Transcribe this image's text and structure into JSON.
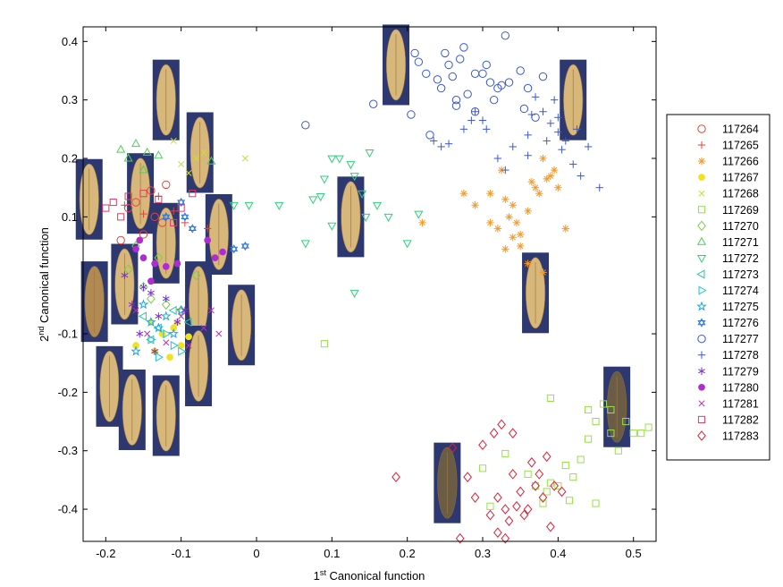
{
  "colors": {
    "grain_bg": "#2d3770",
    "grain_fill_light": "#d8b77a",
    "grain_fill_dark": "#b08a52",
    "grain_fill_dusky": "#6b5d45"
  },
  "chart_data": {
    "type": "scatter",
    "title": "",
    "xlabel": "1st Canonical function",
    "xlabel_main": "1",
    "xlabel_sup": "st",
    "xlabel_rest": " Canonical function",
    "ylabel": "2nd Canonical function",
    "ylabel_main": "2",
    "ylabel_sup": "nd",
    "ylabel_rest": " Canonical function",
    "xlim": [
      -0.23,
      0.53
    ],
    "ylim": [
      -0.455,
      0.425
    ],
    "xticks": [
      -0.2,
      -0.1,
      0,
      0.1,
      0.2,
      0.3,
      0.4,
      0.5
    ],
    "xtick_labels": [
      "-0.2",
      "-0.1",
      "0",
      "0.1",
      "0.2",
      "0.3",
      "0.4",
      "0.5"
    ],
    "yticks": [
      0.4,
      0.3,
      0.2,
      0.1,
      -0.1,
      -0.2,
      -0.3,
      -0.4
    ],
    "ytick_labels": [
      "0.4",
      "0.3",
      "0.2",
      "0.1",
      "-0.1",
      "-0.2",
      "-0.3",
      "-0.4"
    ],
    "legend_position": "outside-right",
    "grain_images": [
      {
        "x": -0.12,
        "y": 0.3,
        "shade": "light"
      },
      {
        "x": -0.075,
        "y": 0.21,
        "shade": "light"
      },
      {
        "x": -0.222,
        "y": 0.13,
        "shade": "light"
      },
      {
        "x": -0.154,
        "y": 0.14,
        "shade": "light"
      },
      {
        "x": -0.05,
        "y": 0.07,
        "shade": "light"
      },
      {
        "x": -0.12,
        "y": 0.055,
        "shade": "light"
      },
      {
        "x": -0.175,
        "y": -0.015,
        "shade": "light"
      },
      {
        "x": -0.215,
        "y": -0.045,
        "shade": "dark"
      },
      {
        "x": -0.077,
        "y": -0.045,
        "shade": "light"
      },
      {
        "x": -0.02,
        "y": -0.085,
        "shade": "light"
      },
      {
        "x": -0.077,
        "y": -0.155,
        "shade": "light"
      },
      {
        "x": -0.195,
        "y": -0.19,
        "shade": "light"
      },
      {
        "x": -0.165,
        "y": -0.23,
        "shade": "light"
      },
      {
        "x": -0.12,
        "y": -0.24,
        "shade": "light"
      },
      {
        "x": 0.185,
        "y": 0.36,
        "shade": "light"
      },
      {
        "x": 0.42,
        "y": 0.3,
        "shade": "light"
      },
      {
        "x": 0.125,
        "y": 0.1,
        "shade": "light"
      },
      {
        "x": 0.37,
        "y": -0.03,
        "shade": "light"
      },
      {
        "x": 0.478,
        "y": -0.225,
        "shade": "dusky"
      },
      {
        "x": 0.253,
        "y": -0.355,
        "shade": "dusky"
      }
    ],
    "series": [
      {
        "name": "117264",
        "color": "#e8423a",
        "marker": "circle",
        "filled": false,
        "x": [
          -0.17,
          -0.16,
          -0.14,
          -0.135,
          -0.125,
          -0.18,
          -0.15,
          -0.12
        ],
        "y": [
          0.115,
          0.125,
          0.145,
          0.1,
          0.09,
          0.06,
          0.07,
          0.155
        ]
      },
      {
        "name": "117265",
        "color": "#e8423a",
        "marker": "plus",
        "filled": false,
        "x": [
          -0.175,
          -0.15,
          -0.13,
          -0.11,
          -0.095,
          -0.065
        ],
        "y": [
          0.12,
          0.105,
          0.135,
          0.11,
          0.09,
          0.08
        ]
      },
      {
        "name": "117266",
        "color": "#f39a2c",
        "marker": "star",
        "filled": false,
        "x": [
          0.275,
          0.29,
          0.31,
          0.325,
          0.33,
          0.335,
          0.34,
          0.345,
          0.35,
          0.36,
          0.365,
          0.37,
          0.375,
          0.38,
          0.39,
          0.395,
          0.4,
          0.33,
          0.34,
          0.35,
          0.32,
          0.31,
          0.36,
          0.41,
          0.38,
          0.22,
          0.385
        ],
        "y": [
          0.14,
          0.12,
          0.14,
          0.18,
          0.13,
          0.1,
          0.12,
          0.09,
          0.07,
          0.11,
          0.16,
          0.15,
          0.14,
          0.2,
          0.17,
          0.18,
          0.15,
          0.045,
          0.065,
          0.05,
          0.08,
          0.09,
          0.02,
          0.08,
          0.005,
          0.09,
          0.165
        ]
      },
      {
        "name": "117267",
        "color": "#f2e21e",
        "marker": "dot",
        "filled": true,
        "x": [
          -0.14,
          -0.125,
          -0.11,
          -0.1,
          -0.09,
          -0.135,
          -0.115,
          -0.105,
          -0.16
        ],
        "y": [
          -0.08,
          -0.1,
          -0.09,
          -0.12,
          -0.105,
          -0.13,
          -0.14,
          -0.08,
          -0.12
        ]
      },
      {
        "name": "117268",
        "color": "#c8e02a",
        "marker": "x",
        "filled": false,
        "x": [
          -0.1,
          -0.09,
          -0.08,
          -0.07,
          -0.015,
          -0.11
        ],
        "y": [
          0.19,
          0.175,
          0.2,
          0.21,
          0.2,
          0.23
        ]
      },
      {
        "name": "117269",
        "color": "#99e04a",
        "marker": "square",
        "filled": false,
        "x": [
          0.09,
          0.3,
          0.31,
          0.33,
          0.36,
          0.37,
          0.38,
          0.385,
          0.39,
          0.4,
          0.41,
          0.415,
          0.42,
          0.43,
          0.44,
          0.45,
          0.46,
          0.47,
          0.47,
          0.48,
          0.49,
          0.5,
          0.51,
          0.52,
          0.44,
          0.45,
          0.39
        ],
        "y": [
          -0.117,
          -0.33,
          -0.395,
          -0.305,
          -0.34,
          -0.36,
          -0.39,
          -0.37,
          -0.355,
          -0.36,
          -0.325,
          -0.385,
          -0.345,
          -0.315,
          -0.28,
          -0.25,
          -0.22,
          -0.23,
          -0.27,
          -0.3,
          -0.25,
          -0.27,
          -0.27,
          -0.26,
          -0.23,
          -0.39,
          -0.21
        ]
      },
      {
        "name": "117270",
        "color": "#7ccf4b",
        "marker": "diamond",
        "filled": false,
        "x": [
          -0.17,
          -0.15,
          -0.14,
          -0.12,
          -0.1,
          -0.08,
          -0.16,
          -0.13
        ],
        "y": [
          0.01,
          -0.02,
          -0.04,
          -0.05,
          -0.06,
          0.0,
          0.05,
          0.03
        ]
      },
      {
        "name": "117271",
        "color": "#4fcf5a",
        "marker": "tri-up",
        "filled": false,
        "x": [
          -0.18,
          -0.17,
          -0.15,
          -0.145,
          -0.13,
          -0.06,
          -0.16
        ],
        "y": [
          0.215,
          0.2,
          0.18,
          0.21,
          0.205,
          0.195,
          0.225
        ]
      },
      {
        "name": "117272",
        "color": "#2fd07a",
        "marker": "tri-down",
        "filled": false,
        "x": [
          -0.03,
          -0.01,
          0.03,
          0.065,
          0.075,
          0.085,
          0.09,
          0.1,
          0.11,
          0.125,
          0.13,
          0.14,
          0.145,
          0.15,
          0.16,
          0.175,
          0.2,
          0.215,
          0.13,
          0.1
        ],
        "y": [
          0.12,
          0.12,
          0.12,
          0.055,
          0.13,
          0.135,
          0.165,
          0.2,
          0.2,
          0.19,
          0.17,
          0.14,
          0.1,
          0.21,
          0.12,
          0.1,
          0.055,
          0.105,
          -0.03,
          0.085
        ]
      },
      {
        "name": "117273",
        "color": "#25c7a3",
        "marker": "tri-left",
        "filled": false,
        "x": [
          -0.15,
          -0.13,
          -0.11,
          -0.09,
          -0.14
        ],
        "y": [
          -0.07,
          -0.09,
          -0.06,
          -0.08,
          -0.11
        ]
      },
      {
        "name": "117274",
        "color": "#1ec3d9",
        "marker": "tri-right",
        "filled": false,
        "x": [
          -0.14,
          -0.12,
          -0.1,
          -0.13,
          -0.11
        ],
        "y": [
          -0.11,
          -0.1,
          -0.13,
          -0.14,
          -0.12
        ]
      },
      {
        "name": "117275",
        "color": "#1aa7e0",
        "marker": "pentagram",
        "filled": false,
        "x": [
          -0.15,
          -0.14,
          -0.12,
          -0.11,
          -0.1,
          -0.13,
          -0.16
        ],
        "y": [
          -0.05,
          -0.08,
          -0.07,
          -0.1,
          -0.06,
          -0.09,
          -0.13
        ]
      },
      {
        "name": "117276",
        "color": "#2f78e0",
        "marker": "hexagram",
        "filled": false,
        "x": [
          -0.1,
          -0.095,
          -0.085,
          -0.03,
          -0.015,
          -0.12
        ],
        "y": [
          0.125,
          0.1,
          0.08,
          0.045,
          0.05,
          0.1
        ]
      },
      {
        "name": "117277",
        "color": "#3b57d8",
        "marker": "circle",
        "filled": false,
        "x": [
          0.065,
          0.155,
          0.205,
          0.21,
          0.215,
          0.225,
          0.23,
          0.24,
          0.245,
          0.25,
          0.255,
          0.26,
          0.265,
          0.27,
          0.275,
          0.28,
          0.29,
          0.3,
          0.305,
          0.31,
          0.315,
          0.32,
          0.325,
          0.33,
          0.335,
          0.35,
          0.355,
          0.36,
          0.37,
          0.38,
          0.29,
          0.265
        ],
        "y": [
          0.257,
          0.293,
          0.275,
          0.38,
          0.365,
          0.345,
          0.24,
          0.335,
          0.32,
          0.38,
          0.36,
          0.34,
          0.3,
          0.37,
          0.39,
          0.31,
          0.28,
          0.345,
          0.36,
          0.33,
          0.3,
          0.32,
          0.325,
          0.41,
          0.33,
          0.35,
          0.285,
          0.32,
          0.27,
          0.34,
          0.345,
          0.29
        ]
      },
      {
        "name": "117278",
        "color": "#3b57d8",
        "marker": "plus",
        "filled": false,
        "x": [
          0.235,
          0.245,
          0.255,
          0.275,
          0.285,
          0.29,
          0.3,
          0.305,
          0.32,
          0.33,
          0.34,
          0.36,
          0.365,
          0.37,
          0.38,
          0.385,
          0.39,
          0.395,
          0.4,
          0.405,
          0.41,
          0.42,
          0.425,
          0.43,
          0.44,
          0.455,
          0.36,
          0.4
        ],
        "y": [
          0.23,
          0.22,
          0.225,
          0.25,
          0.265,
          0.28,
          0.265,
          0.25,
          0.2,
          0.18,
          0.22,
          0.24,
          0.275,
          0.305,
          0.28,
          0.23,
          0.26,
          0.3,
          0.27,
          0.215,
          0.23,
          0.19,
          0.25,
          0.17,
          0.22,
          0.15,
          0.205,
          0.245
        ]
      },
      {
        "name": "117279",
        "color": "#7a2bd6",
        "marker": "asterisk",
        "filled": false,
        "x": [
          -0.175,
          -0.165,
          -0.155,
          -0.14,
          -0.13,
          -0.12,
          -0.105,
          -0.095,
          -0.15,
          -0.135
        ],
        "y": [
          0.0,
          -0.05,
          -0.1,
          -0.03,
          -0.07,
          -0.04,
          -0.08,
          -0.06,
          -0.02,
          -0.13
        ]
      },
      {
        "name": "117280",
        "color": "#b12ad6",
        "marker": "dot",
        "filled": true,
        "x": [
          -0.16,
          -0.15,
          -0.135,
          -0.12,
          -0.105,
          -0.065,
          -0.055,
          -0.045,
          -0.155,
          -0.14
        ],
        "y": [
          0.045,
          0.03,
          0.02,
          0.015,
          0.02,
          0.06,
          0.03,
          0.04,
          0.06,
          -0.01
        ]
      },
      {
        "name": "117281",
        "color": "#c42bb4",
        "marker": "x",
        "filled": false,
        "x": [
          -0.16,
          -0.145,
          -0.12,
          -0.1,
          -0.09,
          -0.07,
          -0.06,
          -0.05
        ],
        "y": [
          -0.06,
          -0.1,
          -0.115,
          -0.07,
          -0.12,
          -0.09,
          -0.06,
          -0.1
        ]
      },
      {
        "name": "117282",
        "color": "#e03a66",
        "marker": "square",
        "filled": false,
        "x": [
          -0.2,
          -0.18,
          -0.17,
          -0.15,
          -0.13,
          -0.11,
          -0.1,
          -0.085,
          -0.19
        ],
        "y": [
          0.115,
          0.1,
          0.135,
          0.14,
          0.13,
          0.09,
          0.115,
          0.14,
          0.125
        ]
      },
      {
        "name": "117283",
        "color": "#e0203a",
        "marker": "diamond",
        "filled": false,
        "x": [
          0.185,
          0.26,
          0.27,
          0.28,
          0.3,
          0.31,
          0.315,
          0.32,
          0.325,
          0.33,
          0.335,
          0.34,
          0.345,
          0.35,
          0.355,
          0.36,
          0.365,
          0.37,
          0.375,
          0.38,
          0.385,
          0.39,
          0.395,
          0.405,
          0.32,
          0.33,
          0.34,
          0.29
        ],
        "y": [
          -0.345,
          -0.295,
          -0.45,
          -0.345,
          -0.29,
          -0.41,
          -0.27,
          -0.38,
          -0.255,
          -0.4,
          -0.42,
          -0.34,
          -0.395,
          -0.37,
          -0.41,
          -0.4,
          -0.32,
          -0.36,
          -0.34,
          -0.38,
          -0.31,
          -0.43,
          -0.36,
          -0.37,
          -0.44,
          -0.45,
          -0.27,
          -0.38
        ]
      }
    ]
  }
}
